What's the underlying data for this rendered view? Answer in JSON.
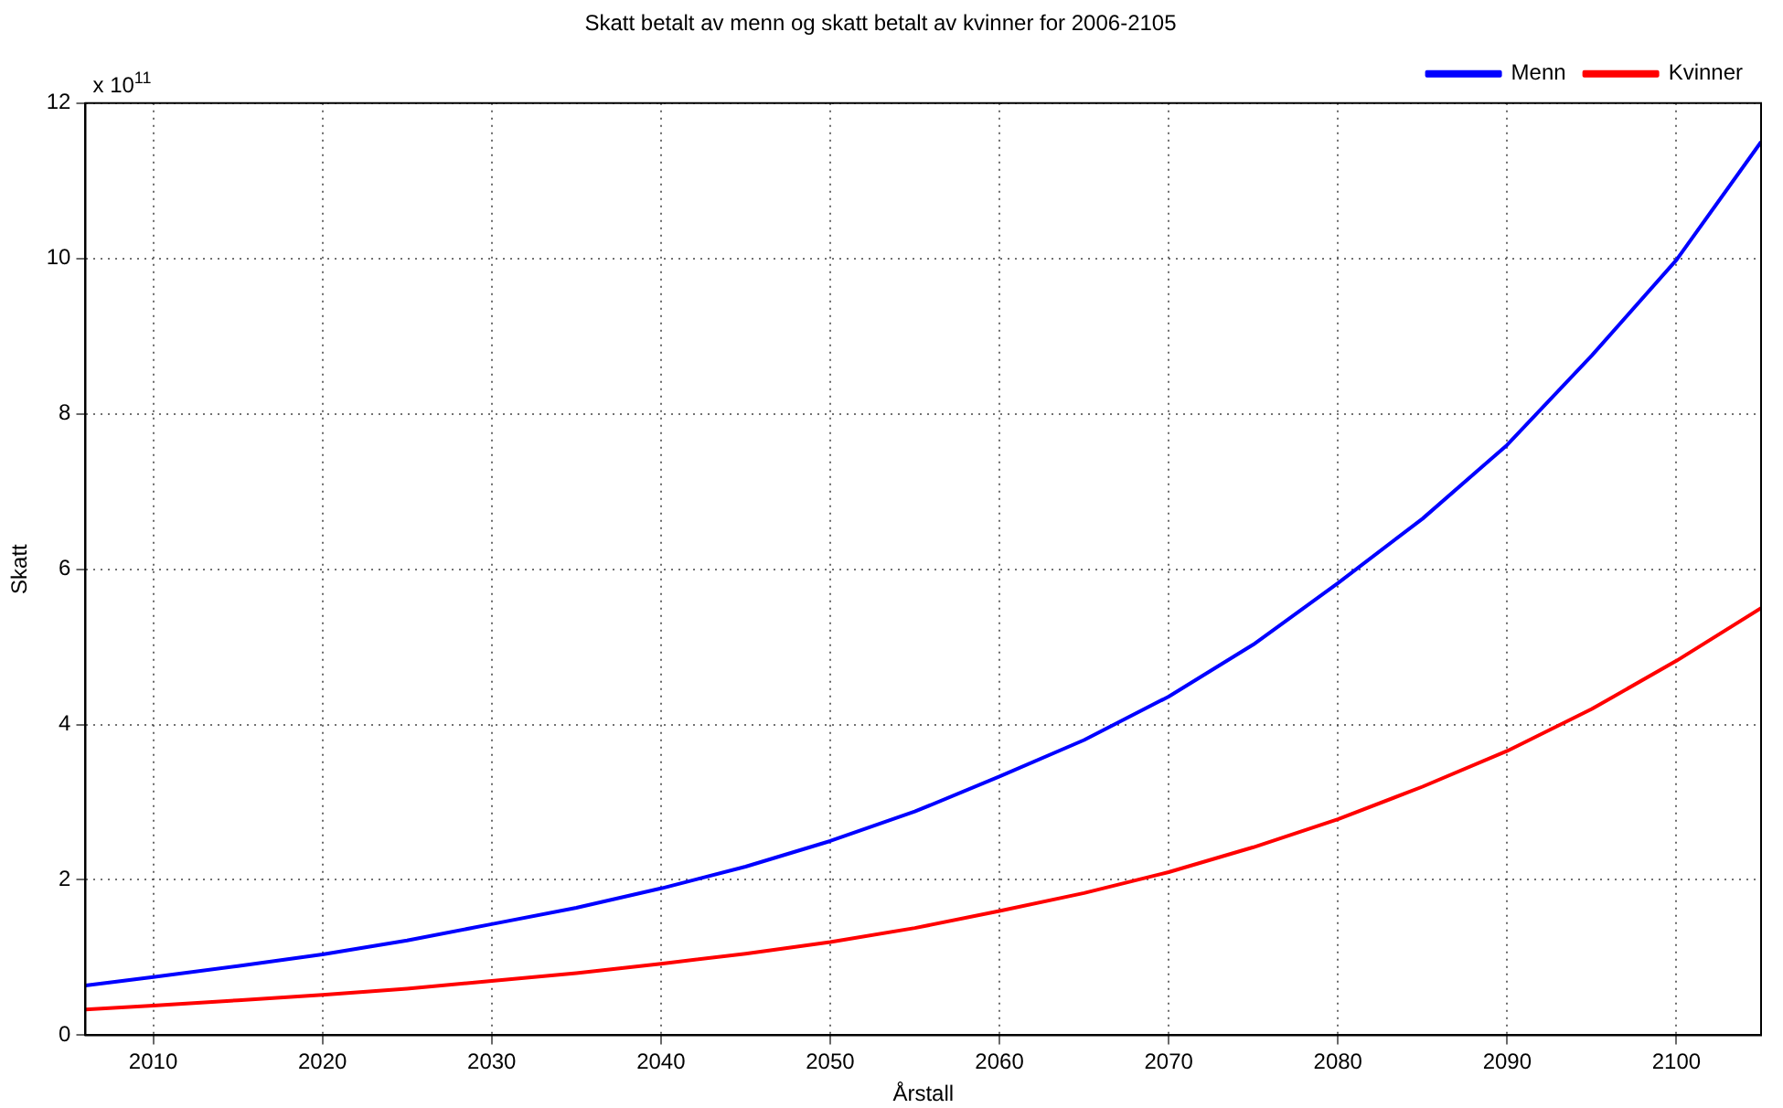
{
  "chart_data": {
    "type": "line",
    "title": "Skatt betalt av menn og skatt betalt av kvinner for 2006-2105",
    "xlabel": "Årstall",
    "ylabel": "Skatt",
    "annotations": [
      "x 10$^{11}$"
    ],
    "x": [
      2006,
      2010,
      2015,
      2020,
      2025,
      2030,
      2035,
      2040,
      2045,
      2050,
      2055,
      2060,
      2065,
      2070,
      2075,
      2080,
      2085,
      2090,
      2095,
      2100,
      2105
    ],
    "xlim": [
      2006,
      2105
    ],
    "xticks": [
      2010,
      2020,
      2030,
      2040,
      2050,
      2060,
      2070,
      2080,
      2090,
      2100
    ],
    "ylim": [
      0,
      12
    ],
    "yticks": [
      0,
      2,
      4,
      6,
      8,
      10,
      12
    ],
    "series": [
      {
        "name": "Menn",
        "color": "#0000ff",
        "values": [
          0.64,
          0.75,
          0.89,
          1.04,
          1.22,
          1.43,
          1.64,
          1.89,
          2.17,
          2.5,
          2.88,
          3.33,
          3.8,
          4.36,
          5.03,
          5.82,
          6.65,
          7.6,
          8.75,
          9.98,
          11.5
        ]
      },
      {
        "name": "Kvinner",
        "color": "#ff0000",
        "values": [
          0.33,
          0.38,
          0.45,
          0.52,
          0.6,
          0.7,
          0.8,
          0.92,
          1.05,
          1.2,
          1.38,
          1.6,
          1.83,
          2.1,
          2.42,
          2.78,
          3.2,
          3.66,
          4.2,
          4.82,
          5.5
        ]
      }
    ],
    "grid": true,
    "legend": "top right",
    "marker": "none",
    "line_style": "solid"
  }
}
